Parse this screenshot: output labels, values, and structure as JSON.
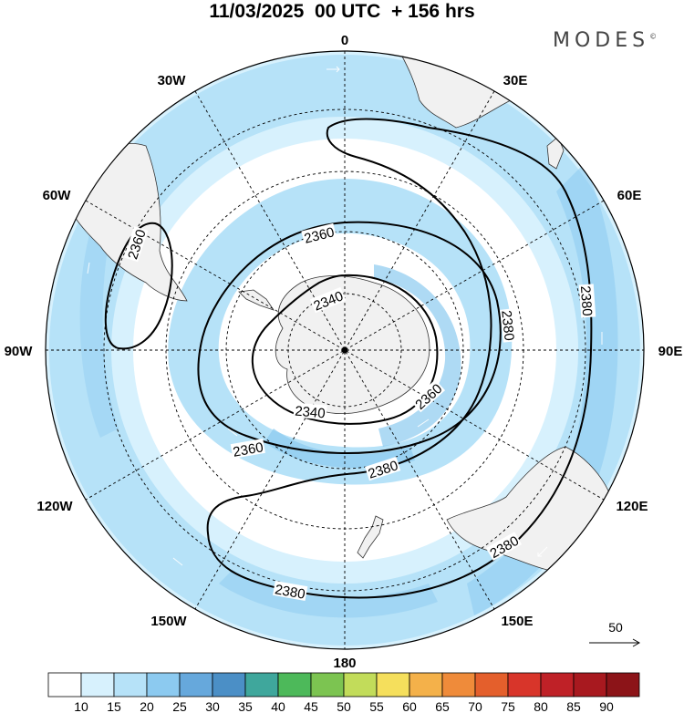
{
  "title": "11/03/2025  00 UTC  + 156 hrs",
  "logo": "MODES",
  "logo_mark": "©",
  "longitude_labels": [
    "0",
    "30E",
    "60E",
    "90E",
    "120E",
    "150E",
    "180",
    "150W",
    "120W",
    "90W",
    "60W",
    "30W"
  ],
  "contour_labels": [
    "2360",
    "2340",
    "2360",
    "2380",
    "2380",
    "2380",
    "2380",
    "2360",
    "2340",
    "2360",
    "2380"
  ],
  "reference_vector": "50",
  "colorbar": {
    "ticks": [
      "10",
      "15",
      "20",
      "25",
      "30",
      "35",
      "40",
      "45",
      "50",
      "55",
      "60",
      "65",
      "70",
      "75",
      "80",
      "85",
      "90"
    ],
    "colors": [
      "#ffffff",
      "#d7f1fd",
      "#b6e2f8",
      "#8ccaf0",
      "#66a8dc",
      "#4b8fc6",
      "#3fa79c",
      "#4db95a",
      "#7cc451",
      "#c2dc5a",
      "#f5df5c",
      "#f4b14a",
      "#ef8b3a",
      "#e45f2c",
      "#d8352a",
      "#bf2127",
      "#a8191f",
      "#8c1418"
    ]
  }
}
